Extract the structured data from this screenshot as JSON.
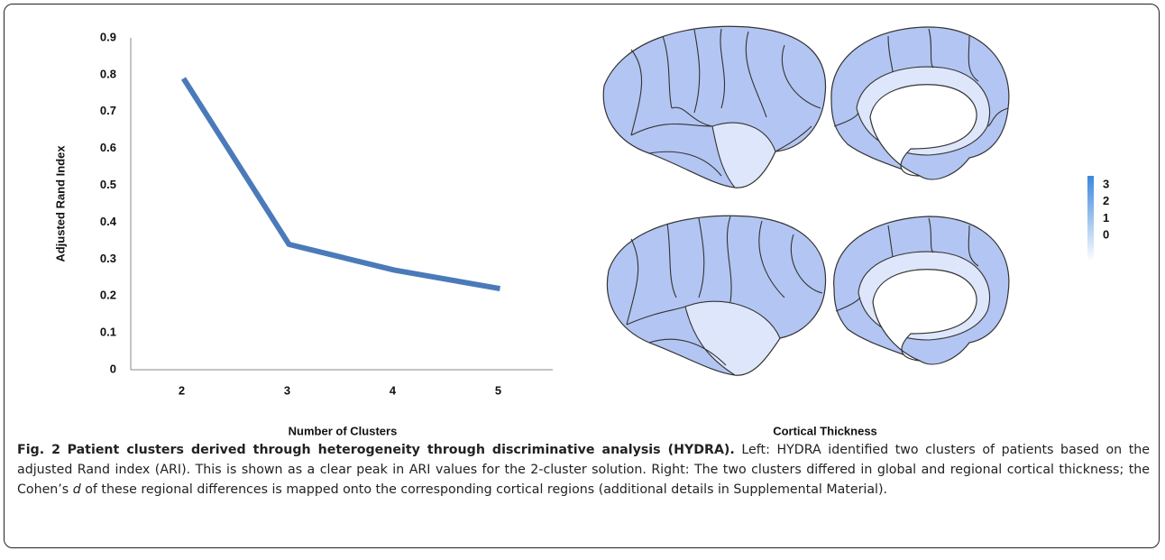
{
  "chart_data": {
    "type": "line",
    "y_label": "Adjusted Rand Index",
    "x_label": "Number of Clusters",
    "categories": [
      "2",
      "3",
      "4",
      "5"
    ],
    "values": [
      0.79,
      0.34,
      0.27,
      0.22
    ],
    "color": "#4a7ab9",
    "ylim": [
      0,
      0.9
    ],
    "yticks": [
      0,
      0.1,
      0.2,
      0.3,
      0.4,
      0.5,
      0.6,
      0.7,
      0.8,
      0.9
    ],
    "grid": false
  },
  "brain_panel": {
    "label": "Cortical Thickness",
    "colorbar": {
      "ticks": [
        3,
        2,
        1,
        0
      ],
      "colors": [
        "#3d87dd",
        "#ffffff"
      ]
    }
  },
  "caption": {
    "label": "Fig. 2",
    "title": "Patient clusters derived through heterogeneity through discriminative analysis (HYDRA).",
    "text_before": "Left: HYDRA identified two clusters of patients based on the adjusted Rand index (ARI). This is shown as a clear peak in ARI values for the 2-cluster solution. Right: The two clusters differed in global and regional cortical thickness; the Cohen’s",
    "italic": "d",
    "text_after": "of these regional differences is mapped onto the corresponding cortical regions (additional details in Supplemental Material)."
  }
}
